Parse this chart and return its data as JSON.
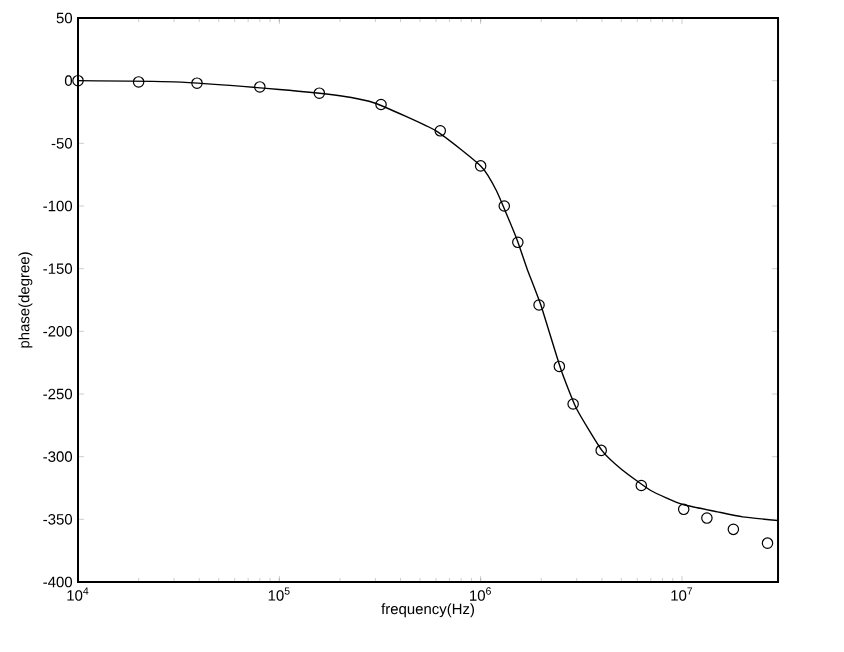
{
  "chart_data": {
    "type": "line",
    "xlabel": "frequency(Hz)",
    "ylabel": "phase(degree)",
    "log": "x",
    "xlim": [
      10000,
      30000000
    ],
    "ylim": [
      -400,
      50
    ],
    "xticks": [
      {
        "value": 10000,
        "label": "10$^{4}$"
      },
      {
        "value": 100000,
        "label": "10$^{5}$"
      },
      {
        "value": 1000000,
        "label": "10$^{6}$"
      },
      {
        "value": 10000000,
        "label": "10$^{7}$"
      }
    ],
    "yticks": [
      -400,
      -350,
      -300,
      -250,
      -200,
      -150,
      -100,
      -50,
      0,
      50
    ],
    "grid": false,
    "series": [
      {
        "type": "scatter",
        "marker": "circle",
        "color": "#000000",
        "x": [
          10000,
          20000,
          39000,
          80000,
          158000,
          320000,
          630000,
          1000000,
          1310000,
          1530000,
          1950000,
          2460000,
          2880000,
          3970000,
          6280000,
          10200000,
          13300000,
          18000000,
          26600000
        ],
        "values": [
          0,
          -1,
          -2,
          -5,
          -10,
          -19,
          -40,
          -68,
          -100,
          -129,
          -179,
          -228,
          -258,
          -295,
          -323,
          -342,
          -349,
          -358,
          -369
        ]
      },
      {
        "marker": "none",
        "color": "#000000",
        "x": [
          10000,
          30000,
          100000,
          200000,
          300000,
          600000,
          1000000,
          1200000,
          1500000,
          1700000,
          2000000,
          2500000,
          3000000,
          4000000,
          5000000,
          7000000,
          10000000,
          15000000,
          20000000,
          30000000
        ],
        "values": [
          0,
          -1,
          -7,
          -12,
          -18,
          -40,
          -68,
          -88,
          -125,
          -150,
          -180,
          -230,
          -262,
          -295,
          -310,
          -327,
          -338,
          -344,
          -348,
          -351
        ]
      }
    ]
  }
}
